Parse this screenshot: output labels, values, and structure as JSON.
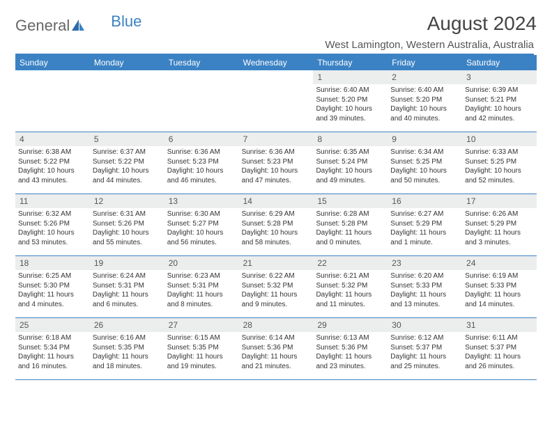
{
  "logo": {
    "part1": "General",
    "part2": "Blue"
  },
  "title": "August 2024",
  "location": "West Lamington, Western Australia, Australia",
  "colors": {
    "accent": "#3b82c4",
    "dayHeaderBg": "#eceded",
    "text": "#333333",
    "muted": "#555555",
    "background": "#ffffff"
  },
  "weekdays": [
    "Sunday",
    "Monday",
    "Tuesday",
    "Wednesday",
    "Thursday",
    "Friday",
    "Saturday"
  ],
  "weeks": [
    [
      {
        "n": "",
        "sr": "",
        "ss": "",
        "d1": "",
        "d2": ""
      },
      {
        "n": "",
        "sr": "",
        "ss": "",
        "d1": "",
        "d2": ""
      },
      {
        "n": "",
        "sr": "",
        "ss": "",
        "d1": "",
        "d2": ""
      },
      {
        "n": "",
        "sr": "",
        "ss": "",
        "d1": "",
        "d2": ""
      },
      {
        "n": "1",
        "sr": "Sunrise: 6:40 AM",
        "ss": "Sunset: 5:20 PM",
        "d1": "Daylight: 10 hours",
        "d2": "and 39 minutes."
      },
      {
        "n": "2",
        "sr": "Sunrise: 6:40 AM",
        "ss": "Sunset: 5:20 PM",
        "d1": "Daylight: 10 hours",
        "d2": "and 40 minutes."
      },
      {
        "n": "3",
        "sr": "Sunrise: 6:39 AM",
        "ss": "Sunset: 5:21 PM",
        "d1": "Daylight: 10 hours",
        "d2": "and 42 minutes."
      }
    ],
    [
      {
        "n": "4",
        "sr": "Sunrise: 6:38 AM",
        "ss": "Sunset: 5:22 PM",
        "d1": "Daylight: 10 hours",
        "d2": "and 43 minutes."
      },
      {
        "n": "5",
        "sr": "Sunrise: 6:37 AM",
        "ss": "Sunset: 5:22 PM",
        "d1": "Daylight: 10 hours",
        "d2": "and 44 minutes."
      },
      {
        "n": "6",
        "sr": "Sunrise: 6:36 AM",
        "ss": "Sunset: 5:23 PM",
        "d1": "Daylight: 10 hours",
        "d2": "and 46 minutes."
      },
      {
        "n": "7",
        "sr": "Sunrise: 6:36 AM",
        "ss": "Sunset: 5:23 PM",
        "d1": "Daylight: 10 hours",
        "d2": "and 47 minutes."
      },
      {
        "n": "8",
        "sr": "Sunrise: 6:35 AM",
        "ss": "Sunset: 5:24 PM",
        "d1": "Daylight: 10 hours",
        "d2": "and 49 minutes."
      },
      {
        "n": "9",
        "sr": "Sunrise: 6:34 AM",
        "ss": "Sunset: 5:25 PM",
        "d1": "Daylight: 10 hours",
        "d2": "and 50 minutes."
      },
      {
        "n": "10",
        "sr": "Sunrise: 6:33 AM",
        "ss": "Sunset: 5:25 PM",
        "d1": "Daylight: 10 hours",
        "d2": "and 52 minutes."
      }
    ],
    [
      {
        "n": "11",
        "sr": "Sunrise: 6:32 AM",
        "ss": "Sunset: 5:26 PM",
        "d1": "Daylight: 10 hours",
        "d2": "and 53 minutes."
      },
      {
        "n": "12",
        "sr": "Sunrise: 6:31 AM",
        "ss": "Sunset: 5:26 PM",
        "d1": "Daylight: 10 hours",
        "d2": "and 55 minutes."
      },
      {
        "n": "13",
        "sr": "Sunrise: 6:30 AM",
        "ss": "Sunset: 5:27 PM",
        "d1": "Daylight: 10 hours",
        "d2": "and 56 minutes."
      },
      {
        "n": "14",
        "sr": "Sunrise: 6:29 AM",
        "ss": "Sunset: 5:28 PM",
        "d1": "Daylight: 10 hours",
        "d2": "and 58 minutes."
      },
      {
        "n": "15",
        "sr": "Sunrise: 6:28 AM",
        "ss": "Sunset: 5:28 PM",
        "d1": "Daylight: 11 hours",
        "d2": "and 0 minutes."
      },
      {
        "n": "16",
        "sr": "Sunrise: 6:27 AM",
        "ss": "Sunset: 5:29 PM",
        "d1": "Daylight: 11 hours",
        "d2": "and 1 minute."
      },
      {
        "n": "17",
        "sr": "Sunrise: 6:26 AM",
        "ss": "Sunset: 5:29 PM",
        "d1": "Daylight: 11 hours",
        "d2": "and 3 minutes."
      }
    ],
    [
      {
        "n": "18",
        "sr": "Sunrise: 6:25 AM",
        "ss": "Sunset: 5:30 PM",
        "d1": "Daylight: 11 hours",
        "d2": "and 4 minutes."
      },
      {
        "n": "19",
        "sr": "Sunrise: 6:24 AM",
        "ss": "Sunset: 5:31 PM",
        "d1": "Daylight: 11 hours",
        "d2": "and 6 minutes."
      },
      {
        "n": "20",
        "sr": "Sunrise: 6:23 AM",
        "ss": "Sunset: 5:31 PM",
        "d1": "Daylight: 11 hours",
        "d2": "and 8 minutes."
      },
      {
        "n": "21",
        "sr": "Sunrise: 6:22 AM",
        "ss": "Sunset: 5:32 PM",
        "d1": "Daylight: 11 hours",
        "d2": "and 9 minutes."
      },
      {
        "n": "22",
        "sr": "Sunrise: 6:21 AM",
        "ss": "Sunset: 5:32 PM",
        "d1": "Daylight: 11 hours",
        "d2": "and 11 minutes."
      },
      {
        "n": "23",
        "sr": "Sunrise: 6:20 AM",
        "ss": "Sunset: 5:33 PM",
        "d1": "Daylight: 11 hours",
        "d2": "and 13 minutes."
      },
      {
        "n": "24",
        "sr": "Sunrise: 6:19 AM",
        "ss": "Sunset: 5:33 PM",
        "d1": "Daylight: 11 hours",
        "d2": "and 14 minutes."
      }
    ],
    [
      {
        "n": "25",
        "sr": "Sunrise: 6:18 AM",
        "ss": "Sunset: 5:34 PM",
        "d1": "Daylight: 11 hours",
        "d2": "and 16 minutes."
      },
      {
        "n": "26",
        "sr": "Sunrise: 6:16 AM",
        "ss": "Sunset: 5:35 PM",
        "d1": "Daylight: 11 hours",
        "d2": "and 18 minutes."
      },
      {
        "n": "27",
        "sr": "Sunrise: 6:15 AM",
        "ss": "Sunset: 5:35 PM",
        "d1": "Daylight: 11 hours",
        "d2": "and 19 minutes."
      },
      {
        "n": "28",
        "sr": "Sunrise: 6:14 AM",
        "ss": "Sunset: 5:36 PM",
        "d1": "Daylight: 11 hours",
        "d2": "and 21 minutes."
      },
      {
        "n": "29",
        "sr": "Sunrise: 6:13 AM",
        "ss": "Sunset: 5:36 PM",
        "d1": "Daylight: 11 hours",
        "d2": "and 23 minutes."
      },
      {
        "n": "30",
        "sr": "Sunrise: 6:12 AM",
        "ss": "Sunset: 5:37 PM",
        "d1": "Daylight: 11 hours",
        "d2": "and 25 minutes."
      },
      {
        "n": "31",
        "sr": "Sunrise: 6:11 AM",
        "ss": "Sunset: 5:37 PM",
        "d1": "Daylight: 11 hours",
        "d2": "and 26 minutes."
      }
    ]
  ]
}
